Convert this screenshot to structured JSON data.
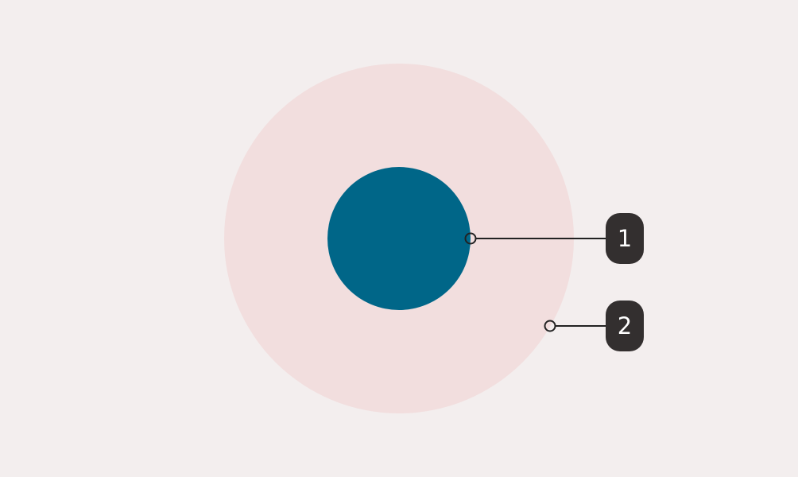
{
  "colors": {
    "background": "#f3eeee",
    "outer_circle": "#f2dede",
    "inner_circle": "#006688",
    "callout_line": "#222222",
    "badge_fill": "#332f2f",
    "badge_text": "#ffffff"
  },
  "callouts": [
    {
      "label": "1",
      "target": "inner-circle"
    },
    {
      "label": "2",
      "target": "outer-circle"
    }
  ]
}
